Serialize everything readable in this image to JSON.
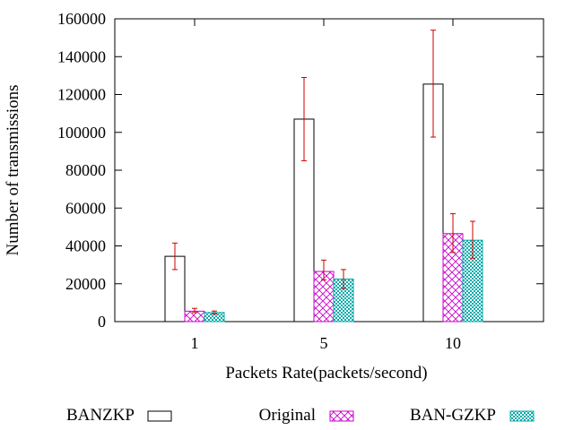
{
  "chart_data": {
    "type": "bar",
    "title": "",
    "xlabel": "Packets Rate(packets/second)",
    "ylabel": "Number of transmissions",
    "categories": [
      "1",
      "5",
      "10"
    ],
    "ylim": [
      0,
      160000
    ],
    "yticks": [
      0,
      20000,
      40000,
      60000,
      80000,
      100000,
      120000,
      140000,
      160000
    ],
    "series": [
      {
        "name": "BANZKP",
        "pattern": "none",
        "fill_color": "#ffffff",
        "stroke_color": "#000000",
        "values": [
          34500,
          107000,
          125500
        ],
        "err_low": [
          27500,
          85000,
          97500
        ],
        "err_high": [
          41500,
          129000,
          154000
        ]
      },
      {
        "name": "Original",
        "pattern": "crosshatch",
        "fill_color": "#cc00cc",
        "stroke_color": "#cc00cc",
        "values": [
          5500,
          26500,
          46500
        ],
        "err_low": [
          4800,
          22000,
          36500
        ],
        "err_high": [
          7000,
          32500,
          57000
        ]
      },
      {
        "name": "BAN-GZKP",
        "pattern": "dots",
        "fill_color": "#00aaaa",
        "stroke_color": "#00aaaa",
        "values": [
          4800,
          22500,
          43000
        ],
        "err_low": [
          4000,
          17500,
          33500
        ],
        "err_high": [
          5600,
          27500,
          53000
        ]
      }
    ],
    "error_bar_color": "#cc0000",
    "grid": false,
    "legend_position": "bottom"
  }
}
